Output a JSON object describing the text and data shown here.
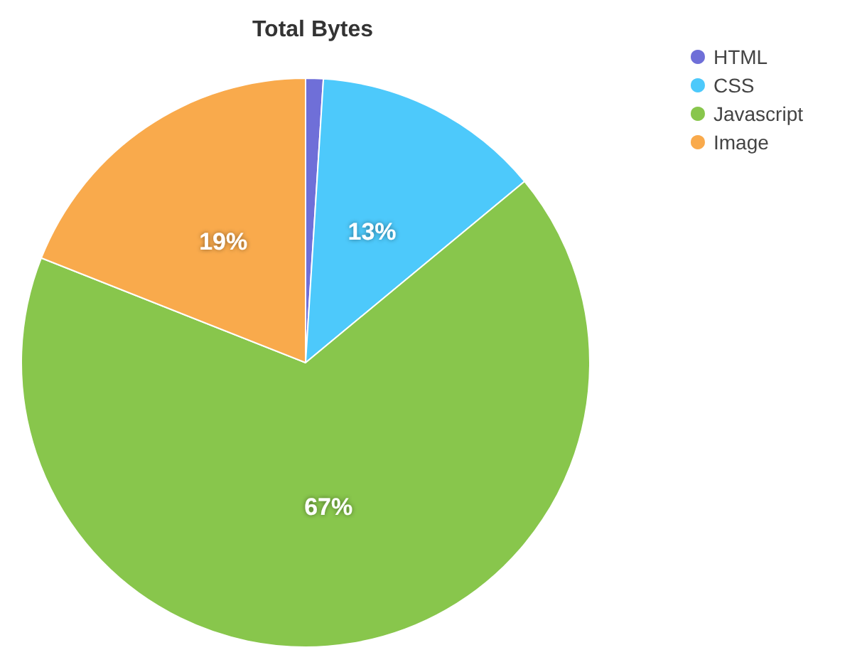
{
  "chart_data": {
    "type": "pie",
    "title": "Total Bytes",
    "categories": [
      "HTML",
      "CSS",
      "Javascript",
      "Image"
    ],
    "values": [
      1,
      13,
      67,
      19
    ],
    "colors": [
      "#6f6fd8",
      "#4dc9fb",
      "#88c64c",
      "#f9aa4c"
    ],
    "value_labels": [
      null,
      "13%",
      "67%",
      "19%"
    ],
    "legend": "top right"
  }
}
